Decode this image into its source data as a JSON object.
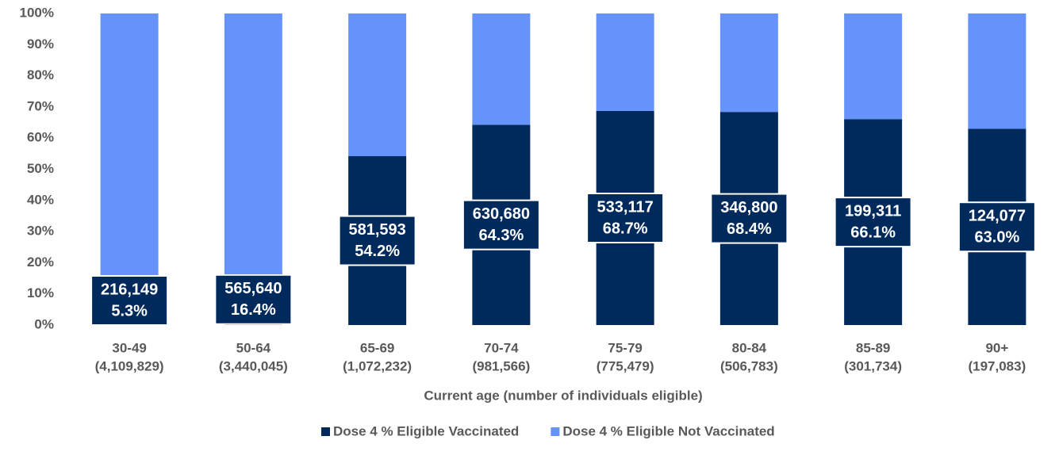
{
  "chart_data": {
    "type": "stacked_bar",
    "x_label": "Current age (number of individuals eligible)",
    "categories": [
      [
        "30-49",
        "(4,109,829)"
      ],
      [
        "50-64",
        "(3,440,045)"
      ],
      [
        "65-69",
        "(1,072,232)"
      ],
      [
        "70-74",
        "(981,566)"
      ],
      [
        "75-79",
        "(775,479)"
      ],
      [
        "80-84",
        "(506,783)"
      ],
      [
        "85-89",
        "(301,734)"
      ],
      [
        "90+",
        "(197,083)"
      ]
    ],
    "series": [
      {
        "name": "Dose 4 % Eligible Vaccinated",
        "color": "#002a5c",
        "values": [
          5.3,
          16.4,
          54.2,
          64.3,
          68.7,
          68.4,
          66.1,
          63.0
        ],
        "value_labels": [
          "5.3%",
          "16.4%",
          "54.2%",
          "64.3%",
          "68.7%",
          "68.4%",
          "66.1%",
          "63.0%"
        ],
        "count_labels": [
          "216,149",
          "565,640",
          "581,593",
          "630,680",
          "533,117",
          "346,800",
          "199,311",
          "124,077"
        ]
      },
      {
        "name": "Dose 4 % Eligible Not Vaccinated",
        "color": "#6592fb",
        "values": [
          94.7,
          83.6,
          45.8,
          35.7,
          31.3,
          31.6,
          33.9,
          37.0
        ]
      }
    ],
    "ylim": [
      0,
      100
    ],
    "yticks": [
      {
        "value": 0,
        "label": "0%"
      },
      {
        "value": 10,
        "label": "10%"
      },
      {
        "value": 20,
        "label": "20%"
      },
      {
        "value": 30,
        "label": "30%"
      },
      {
        "value": 40,
        "label": "40%"
      },
      {
        "value": 50,
        "label": "50%"
      },
      {
        "value": 60,
        "label": "60%"
      },
      {
        "value": 70,
        "label": "70%"
      },
      {
        "value": 80,
        "label": "80%"
      },
      {
        "value": 90,
        "label": "90%"
      },
      {
        "value": 100,
        "label": "100%"
      }
    ],
    "legend": "bottom"
  }
}
